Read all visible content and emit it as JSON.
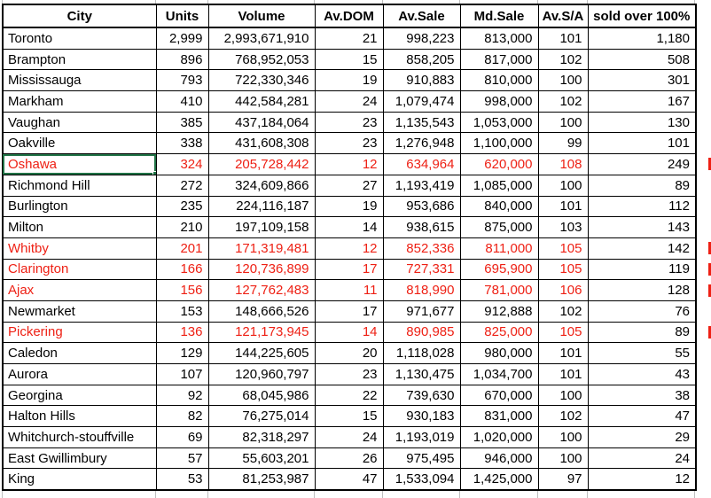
{
  "colors": {
    "red": "#ee2014",
    "green": "#217346",
    "grid_border": "#000000",
    "faint_gridline": "#bfbfbf"
  },
  "table": {
    "columns": [
      "City",
      "Units",
      "Volume",
      "Av.DOM",
      "Av.Sale",
      "Md.Sale",
      "Av.S/A",
      "sold over 100%"
    ],
    "rows": [
      {
        "city": "Toronto",
        "units": "2,999",
        "volume": "2,993,671,910",
        "av_dom": "21",
        "av_sale": "998,223",
        "md_sale": "813,000",
        "av_sa": "101",
        "sold_over": "1,180",
        "highlight": false,
        "selected": false
      },
      {
        "city": "Brampton",
        "units": "896",
        "volume": "768,952,053",
        "av_dom": "15",
        "av_sale": "858,205",
        "md_sale": "817,000",
        "av_sa": "102",
        "sold_over": "508",
        "highlight": false,
        "selected": false
      },
      {
        "city": "Mississauga",
        "units": "793",
        "volume": "722,330,346",
        "av_dom": "19",
        "av_sale": "910,883",
        "md_sale": "810,000",
        "av_sa": "100",
        "sold_over": "301",
        "highlight": false,
        "selected": false
      },
      {
        "city": "Markham",
        "units": "410",
        "volume": "442,584,281",
        "av_dom": "24",
        "av_sale": "1,079,474",
        "md_sale": "998,000",
        "av_sa": "102",
        "sold_over": "167",
        "highlight": false,
        "selected": false
      },
      {
        "city": "Vaughan",
        "units": "385",
        "volume": "437,184,064",
        "av_dom": "23",
        "av_sale": "1,135,543",
        "md_sale": "1,053,000",
        "av_sa": "100",
        "sold_over": "130",
        "highlight": false,
        "selected": false
      },
      {
        "city": "Oakville",
        "units": "338",
        "volume": "431,608,308",
        "av_dom": "23",
        "av_sale": "1,276,948",
        "md_sale": "1,100,000",
        "av_sa": "99",
        "sold_over": "101",
        "highlight": false,
        "selected": false
      },
      {
        "city": "Oshawa",
        "units": "324",
        "volume": "205,728,442",
        "av_dom": "12",
        "av_sale": "634,964",
        "md_sale": "620,000",
        "av_sa": "108",
        "sold_over": "249",
        "highlight": true,
        "selected": true
      },
      {
        "city": "Richmond Hill",
        "units": "272",
        "volume": "324,609,866",
        "av_dom": "27",
        "av_sale": "1,193,419",
        "md_sale": "1,085,000",
        "av_sa": "100",
        "sold_over": "89",
        "highlight": false,
        "selected": false
      },
      {
        "city": "Burlington",
        "units": "235",
        "volume": "224,116,187",
        "av_dom": "19",
        "av_sale": "953,686",
        "md_sale": "840,000",
        "av_sa": "101",
        "sold_over": "112",
        "highlight": false,
        "selected": false
      },
      {
        "city": "Milton",
        "units": "210",
        "volume": "197,109,158",
        "av_dom": "14",
        "av_sale": "938,615",
        "md_sale": "875,000",
        "av_sa": "103",
        "sold_over": "143",
        "highlight": false,
        "selected": false
      },
      {
        "city": "Whitby",
        "units": "201",
        "volume": "171,319,481",
        "av_dom": "12",
        "av_sale": "852,336",
        "md_sale": "811,000",
        "av_sa": "105",
        "sold_over": "142",
        "highlight": true,
        "selected": false
      },
      {
        "city": "Clarington",
        "units": "166",
        "volume": "120,736,899",
        "av_dom": "17",
        "av_sale": "727,331",
        "md_sale": "695,900",
        "av_sa": "105",
        "sold_over": "119",
        "highlight": true,
        "selected": false
      },
      {
        "city": "Ajax",
        "units": "156",
        "volume": "127,762,483",
        "av_dom": "11",
        "av_sale": "818,990",
        "md_sale": "781,000",
        "av_sa": "106",
        "sold_over": "128",
        "highlight": true,
        "selected": false
      },
      {
        "city": "Newmarket",
        "units": "153",
        "volume": "148,666,526",
        "av_dom": "17",
        "av_sale": "971,677",
        "md_sale": "912,888",
        "av_sa": "102",
        "sold_over": "76",
        "highlight": false,
        "selected": false
      },
      {
        "city": "Pickering",
        "units": "136",
        "volume": "121,173,945",
        "av_dom": "14",
        "av_sale": "890,985",
        "md_sale": "825,000",
        "av_sa": "105",
        "sold_over": "89",
        "highlight": true,
        "selected": false
      },
      {
        "city": "Caledon",
        "units": "129",
        "volume": "144,225,605",
        "av_dom": "20",
        "av_sale": "1,118,028",
        "md_sale": "980,000",
        "av_sa": "101",
        "sold_over": "55",
        "highlight": false,
        "selected": false
      },
      {
        "city": "Aurora",
        "units": "107",
        "volume": "120,960,797",
        "av_dom": "23",
        "av_sale": "1,130,475",
        "md_sale": "1,034,700",
        "av_sa": "101",
        "sold_over": "43",
        "highlight": false,
        "selected": false
      },
      {
        "city": "Georgina",
        "units": "92",
        "volume": "68,045,986",
        "av_dom": "22",
        "av_sale": "739,630",
        "md_sale": "670,000",
        "av_sa": "100",
        "sold_over": "38",
        "highlight": false,
        "selected": false
      },
      {
        "city": "Halton Hills",
        "units": "82",
        "volume": "76,275,014",
        "av_dom": "15",
        "av_sale": "930,183",
        "md_sale": "831,000",
        "av_sa": "102",
        "sold_over": "47",
        "highlight": false,
        "selected": false
      },
      {
        "city": "Whitchurch-stouffville",
        "units": "69",
        "volume": "82,318,297",
        "av_dom": "24",
        "av_sale": "1,193,019",
        "md_sale": "1,020,000",
        "av_sa": "100",
        "sold_over": "29",
        "highlight": false,
        "selected": false
      },
      {
        "city": "East Gwillimbury",
        "units": "57",
        "volume": "55,603,201",
        "av_dom": "26",
        "av_sale": "975,495",
        "md_sale": "946,000",
        "av_sa": "100",
        "sold_over": "24",
        "highlight": false,
        "selected": false
      },
      {
        "city": "King",
        "units": "53",
        "volume": "81,253,987",
        "av_dom": "47",
        "av_sale": "1,533,094",
        "md_sale": "1,425,000",
        "av_sa": "97",
        "sold_over": "12",
        "highlight": false,
        "selected": false
      }
    ]
  }
}
